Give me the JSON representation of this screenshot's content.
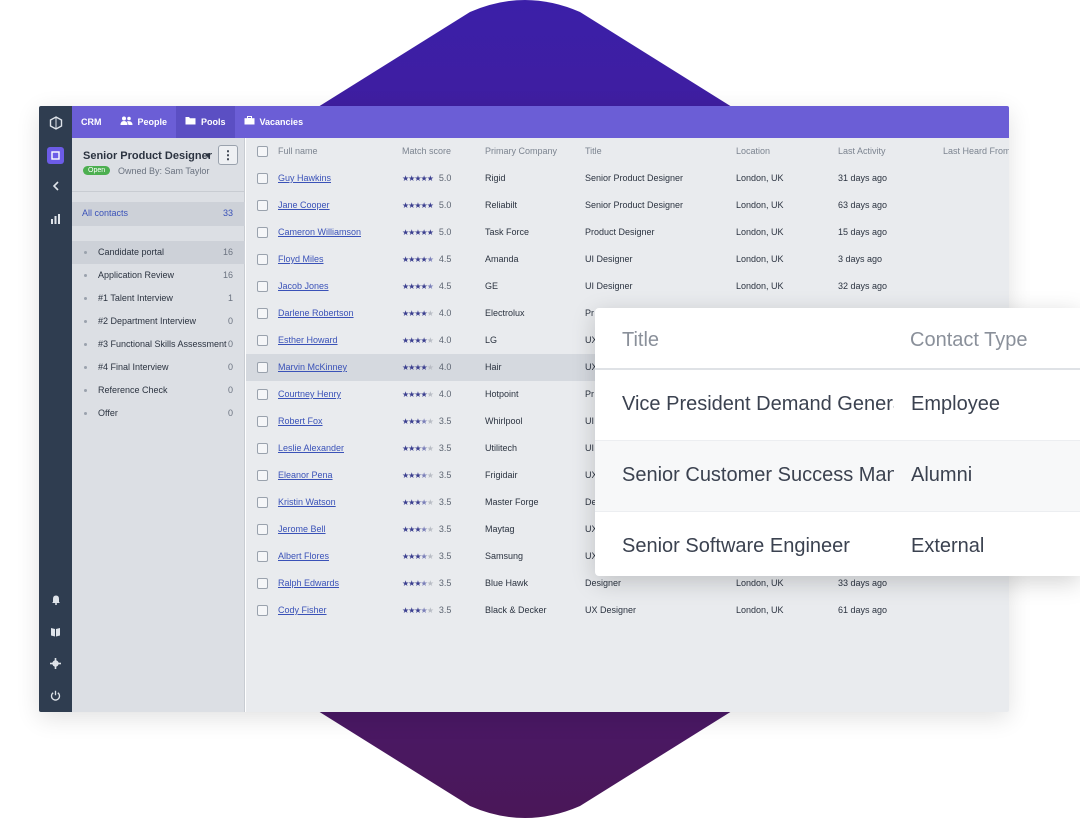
{
  "colors": {
    "accent": "#6b5ed6",
    "rail": "#2f3d50",
    "link": "#3a52b8",
    "open_badge": "#4caf50",
    "diamond_top": "#3b1fa8",
    "diamond_bottom": "#4a1758"
  },
  "rail_icons": [
    "logo-icon",
    "board-icon",
    "collapse-icon",
    "chart-icon",
    "bell-icon",
    "book-icon",
    "gear-icon",
    "power-icon"
  ],
  "nav": {
    "crm": "CRM",
    "people": "People",
    "pools": "Pools",
    "vacancies": "Vacancies"
  },
  "pipeline": {
    "title": "Senior Product Designer",
    "status": "Open",
    "owner": "Owned By: Sam Taylor",
    "all_contacts_label": "All contacts",
    "all_contacts_count": "33",
    "stages": [
      {
        "label": "Candidate portal",
        "count": "16"
      },
      {
        "label": "Application Review",
        "count": "16"
      },
      {
        "label": "#1 Talent Interview",
        "count": "1"
      },
      {
        "label": "#2 Department Interview",
        "count": "0"
      },
      {
        "label": "#3 Functional Skills Assessment",
        "count": "0"
      },
      {
        "label": "#4 Final Interview",
        "count": "0"
      },
      {
        "label": "Reference Check",
        "count": "0"
      },
      {
        "label": "Offer",
        "count": "0"
      }
    ]
  },
  "table": {
    "columns": [
      "Full name",
      "Match score",
      "Primary Company",
      "Title",
      "Location",
      "Last Activity",
      "Last Heard From"
    ],
    "rows": [
      {
        "name": "Guy Hawkins",
        "stars": 5,
        "score": "5.0",
        "company": "Rigid",
        "title": "Senior Product Designer",
        "location": "London, UK",
        "activity": "31 days ago"
      },
      {
        "name": "Jane Cooper",
        "stars": 5,
        "score": "5.0",
        "company": "Reliabilt",
        "title": "Senior Product Designer",
        "location": "London, UK",
        "activity": "63 days ago"
      },
      {
        "name": "Cameron Williamson",
        "stars": 5,
        "score": "5.0",
        "company": "Task Force",
        "title": "Product Designer",
        "location": "London, UK",
        "activity": "15 days ago"
      },
      {
        "name": "Floyd Miles",
        "stars": 4.5,
        "score": "4.5",
        "company": "Amanda",
        "title": "UI Designer",
        "location": "London, UK",
        "activity": "3 days ago"
      },
      {
        "name": "Jacob Jones",
        "stars": 4.5,
        "score": "4.5",
        "company": "GE",
        "title": "UI Designer",
        "location": "London, UK",
        "activity": "32 days ago"
      },
      {
        "name": "Darlene Robertson",
        "stars": 4,
        "score": "4.0",
        "company": "Electrolux",
        "title": "Pr",
        "location": "",
        "activity": ""
      },
      {
        "name": "Esther Howard",
        "stars": 4,
        "score": "4.0",
        "company": "LG",
        "title": "UX",
        "location": "",
        "activity": ""
      },
      {
        "name": "Marvin McKinney",
        "stars": 4,
        "score": "4.0",
        "company": "Hair",
        "title": "UX",
        "location": "",
        "activity": ""
      },
      {
        "name": "Courtney Henry",
        "stars": 4,
        "score": "4.0",
        "company": "Hotpoint",
        "title": "Pr",
        "location": "",
        "activity": ""
      },
      {
        "name": "Robert Fox",
        "stars": 3.5,
        "score": "3.5",
        "company": "Whirlpool",
        "title": "UI",
        "location": "",
        "activity": ""
      },
      {
        "name": "Leslie Alexander",
        "stars": 3.5,
        "score": "3.5",
        "company": "Utilitech",
        "title": "UI",
        "location": "",
        "activity": ""
      },
      {
        "name": "Eleanor Pena",
        "stars": 3.5,
        "score": "3.5",
        "company": "Frigidair",
        "title": "UX",
        "location": "",
        "activity": ""
      },
      {
        "name": "Kristin Watson",
        "stars": 3.5,
        "score": "3.5",
        "company": "Master Forge",
        "title": "De",
        "location": "",
        "activity": ""
      },
      {
        "name": "Jerome Bell",
        "stars": 3.5,
        "score": "3.5",
        "company": "Maytag",
        "title": "UX",
        "location": "",
        "activity": ""
      },
      {
        "name": "Albert Flores",
        "stars": 3.5,
        "score": "3.5",
        "company": "Samsung",
        "title": "UX",
        "location": "",
        "activity": ""
      },
      {
        "name": "Ralph Edwards",
        "stars": 3.5,
        "score": "3.5",
        "company": "Blue Hawk",
        "title": "Designer",
        "location": "London, UK",
        "activity": "33 days ago"
      },
      {
        "name": "Cody Fisher",
        "stars": 3.5,
        "score": "3.5",
        "company": "Black & Decker",
        "title": "UX Designer",
        "location": "London, UK",
        "activity": "61 days ago"
      }
    ]
  },
  "overlay": {
    "col_title": "Title",
    "col_type": "Contact Type",
    "rows": [
      {
        "title": "Vice President Demand Generation",
        "type": "Employee"
      },
      {
        "title": "Senior Customer Success Manager",
        "type": "Alumni"
      },
      {
        "title": "Senior Software Engineer",
        "type": "External"
      }
    ]
  }
}
